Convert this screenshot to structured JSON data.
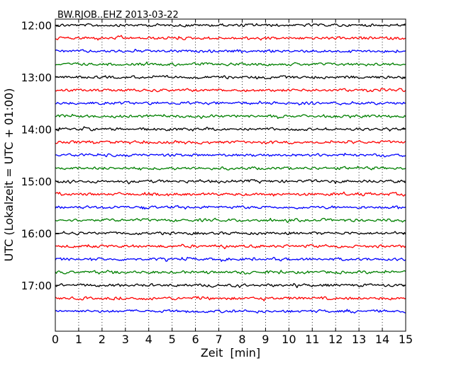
{
  "chart_data": {
    "type": "line",
    "subtype": "helicorder",
    "title": "BW.RJOB..EHZ 2013-03-22",
    "xlabel": "Zeit  [min]",
    "ylabel": "UTC (Lokalzeit = UTC + 01:00)",
    "xlim": [
      0,
      15
    ],
    "xticks": [
      0,
      1,
      2,
      3,
      4,
      5,
      6,
      7,
      8,
      9,
      10,
      11,
      12,
      13,
      14,
      15
    ],
    "ylim": [
      "11:53",
      "17:53"
    ],
    "yticks": [
      "12:00",
      "13:00",
      "14:00",
      "15:00",
      "16:00",
      "17:00"
    ],
    "grid": "vertical dotted at each minute",
    "trace_colors": [
      "#000000",
      "#ff0000",
      "#0000ff",
      "#008000"
    ],
    "rows_minutes_apart": 15,
    "rows": [
      {
        "start": "12:00",
        "color": "#000000"
      },
      {
        "start": "12:15",
        "color": "#ff0000"
      },
      {
        "start": "12:30",
        "color": "#0000ff"
      },
      {
        "start": "12:45",
        "color": "#008000"
      },
      {
        "start": "13:00",
        "color": "#000000"
      },
      {
        "start": "13:15",
        "color": "#ff0000"
      },
      {
        "start": "13:30",
        "color": "#0000ff"
      },
      {
        "start": "13:45",
        "color": "#008000"
      },
      {
        "start": "14:00",
        "color": "#000000"
      },
      {
        "start": "14:15",
        "color": "#ff0000"
      },
      {
        "start": "14:30",
        "color": "#0000ff"
      },
      {
        "start": "14:45",
        "color": "#008000"
      },
      {
        "start": "15:00",
        "color": "#000000"
      },
      {
        "start": "15:15",
        "color": "#ff0000"
      },
      {
        "start": "15:30",
        "color": "#0000ff"
      },
      {
        "start": "15:45",
        "color": "#008000"
      },
      {
        "start": "16:00",
        "color": "#000000"
      },
      {
        "start": "16:15",
        "color": "#ff0000"
      },
      {
        "start": "16:30",
        "color": "#0000ff"
      },
      {
        "start": "16:45",
        "color": "#008000"
      },
      {
        "start": "17:00",
        "color": "#000000"
      },
      {
        "start": "17:15",
        "color": "#ff0000"
      },
      {
        "start": "17:30",
        "color": "#0000ff"
      }
    ]
  }
}
